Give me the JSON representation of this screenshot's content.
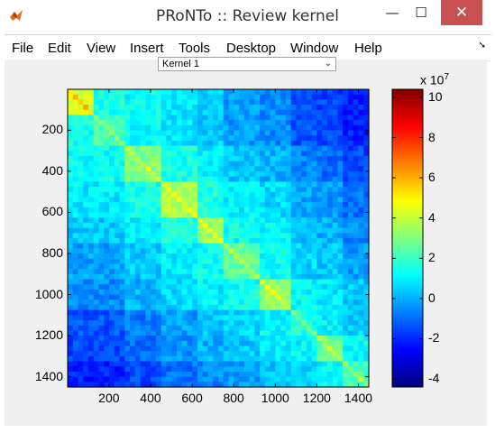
{
  "window": {
    "title": "PRoNTo :: Review kernel",
    "minimize_glyph": "—",
    "maximize_glyph": "☐",
    "close_glyph": "✕",
    "icon": "matlab-icon"
  },
  "menu": {
    "items": [
      "File",
      "Edit",
      "View",
      "Insert",
      "Tools",
      "Desktop",
      "Window",
      "Help"
    ],
    "overflow_glyph": "➘"
  },
  "kernel_select": {
    "value": "Kernel 1",
    "arrow_glyph": "⌄"
  },
  "chart_data": {
    "type": "heatmap",
    "x_ticks": [
      200,
      400,
      600,
      800,
      1000,
      1200,
      1400
    ],
    "y_ticks": [
      200,
      400,
      600,
      800,
      1000,
      1200,
      1400
    ],
    "x_range": [
      1,
      1450
    ],
    "y_range": [
      1,
      1450
    ],
    "colormap": "jet",
    "colorbar": {
      "ticks": [
        10,
        8,
        6,
        4,
        2,
        0,
        -2,
        -4
      ],
      "range": [
        -4.4,
        10.4
      ],
      "exponent_label": "x 10",
      "exponent_power": "7"
    },
    "blocks": [
      {
        "from": 1,
        "to": 120,
        "value": 4.5
      },
      {
        "from": 120,
        "to": 280,
        "value": 2.2
      },
      {
        "from": 280,
        "to": 450,
        "value": 3.0
      },
      {
        "from": 450,
        "to": 620,
        "value": 3.6
      },
      {
        "from": 620,
        "to": 760,
        "value": 3.4
      },
      {
        "from": 760,
        "to": 930,
        "value": 2.6
      },
      {
        "from": 930,
        "to": 1080,
        "value": 3.2
      },
      {
        "from": 1080,
        "to": 1200,
        "value": 1.6
      },
      {
        "from": 1200,
        "to": 1330,
        "value": 2.8
      },
      {
        "from": 1330,
        "to": 1450,
        "value": 2.2
      }
    ]
  }
}
